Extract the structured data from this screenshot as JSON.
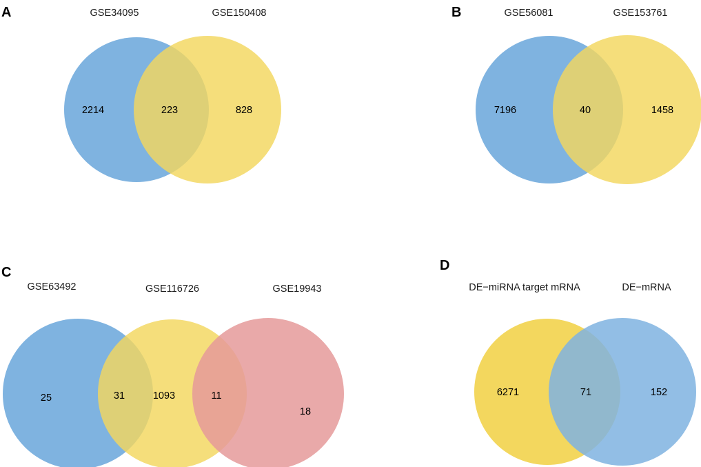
{
  "colors": {
    "blue": "#7fb3e0",
    "yellow": "#f3d75e",
    "pink": "#e59a9a"
  },
  "panels": {
    "a": {
      "letter": "A",
      "sets": [
        "GSE34095",
        "GSE150408"
      ],
      "counts": {
        "only_1": "2214",
        "overlap": "223",
        "only_2": "828"
      }
    },
    "b": {
      "letter": "B",
      "sets": [
        "GSE56081",
        "GSE153761"
      ],
      "counts": {
        "only_1": "7196",
        "overlap": "40",
        "only_2": "1458"
      }
    },
    "c": {
      "letter": "C",
      "sets": [
        "GSE63492",
        "GSE116726",
        "GSE19943"
      ],
      "counts": {
        "only_1": "25",
        "overlap_12": "31",
        "only_2": "1093",
        "overlap_23": "11",
        "only_3": "18"
      }
    },
    "d": {
      "letter": "D",
      "sets": [
        "DE−miRNA target mRNA",
        "DE−mRNA"
      ],
      "counts": {
        "only_1": "6271",
        "overlap": "71",
        "only_2": "152"
      }
    }
  }
}
